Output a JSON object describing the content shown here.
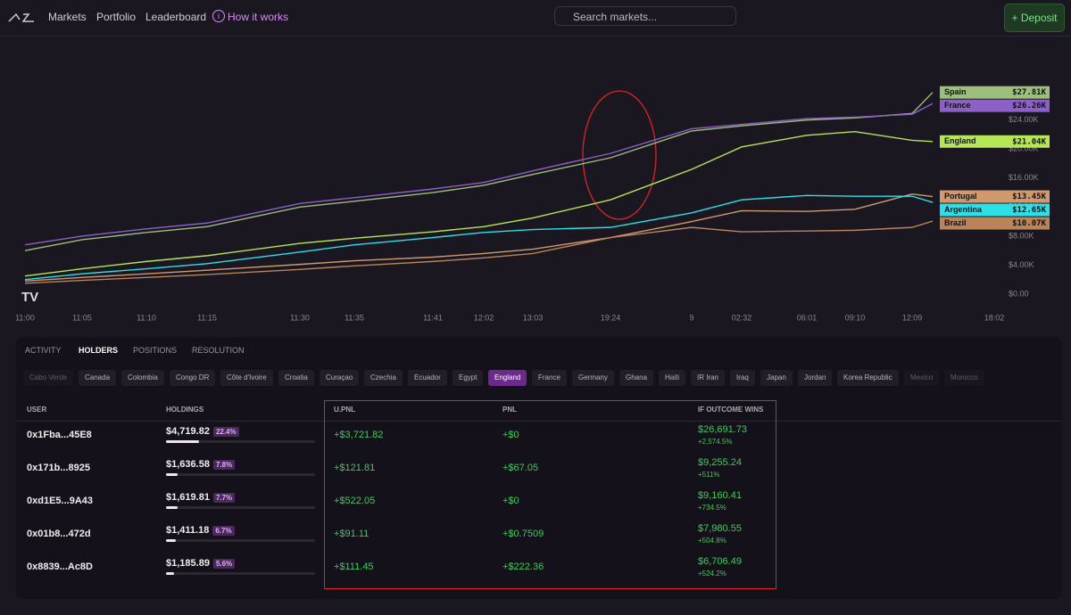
{
  "header": {
    "nav": [
      "Markets",
      "Portfolio",
      "Leaderboard",
      "How it works"
    ],
    "search_placeholder": "Search markets...",
    "deposit": "+ Deposit"
  },
  "chart_data": {
    "type": "line",
    "categories": [
      "11:00",
      "11:05",
      "11:10",
      "11:15",
      "11:30",
      "11:35",
      "11:41",
      "12:02",
      "13:03",
      "19:24",
      "9",
      "02:32",
      "06:01",
      "09:10",
      "12:09",
      "18:02"
    ],
    "ylim": [
      0,
      29000
    ],
    "yticks": [
      {
        "value": 0,
        "label": "$0.00"
      },
      {
        "value": 4000,
        "label": "$4.00K"
      },
      {
        "value": 8000,
        "label": "$8.00K"
      },
      {
        "value": 12000,
        "label": "$12.00K"
      },
      {
        "value": 16000,
        "label": "$16.00K"
      },
      {
        "value": 20000,
        "label": "$20.00K"
      },
      {
        "value": 24000,
        "label": "$24.00K"
      }
    ],
    "series": [
      {
        "name": "Spain",
        "color": "#9dbf7c",
        "values": [
          6000,
          7500,
          8500,
          9300,
          12000,
          12800,
          14000,
          15000,
          16500,
          18800,
          22500,
          23200,
          24000,
          24300,
          24900,
          27810
        ],
        "value_labels": [
          null,
          null,
          null,
          null,
          null,
          null,
          null,
          null,
          null,
          null,
          null,
          null,
          null,
          null,
          null,
          "$27.81K"
        ]
      },
      {
        "name": "France",
        "color": "#8e5fc7",
        "values": [
          6800,
          8000,
          9000,
          9800,
          12500,
          13300,
          14500,
          15400,
          17000,
          19400,
          22800,
          23400,
          24200,
          24400,
          24800,
          26260
        ],
        "value_labels": [
          null,
          null,
          null,
          null,
          null,
          null,
          null,
          null,
          null,
          null,
          null,
          null,
          null,
          null,
          null,
          "$26.26K"
        ]
      },
      {
        "name": "England",
        "color": "#b5e655",
        "values": [
          2500,
          3500,
          4500,
          5300,
          7000,
          7700,
          8600,
          9300,
          10500,
          13000,
          17200,
          20300,
          21900,
          22400,
          21200,
          21040
        ],
        "value_labels": [
          null,
          null,
          null,
          null,
          null,
          null,
          null,
          null,
          null,
          null,
          null,
          null,
          null,
          null,
          null,
          "$21.04K"
        ]
      },
      {
        "name": "Portugal",
        "color": "#d09a6e",
        "values": [
          1800,
          2300,
          2800,
          3300,
          4100,
          4600,
          5100,
          5600,
          6200,
          7800,
          10000,
          11500,
          11400,
          11700,
          13800,
          13450
        ],
        "value_labels": [
          null,
          null,
          null,
          null,
          null,
          null,
          null,
          null,
          null,
          null,
          null,
          null,
          null,
          null,
          null,
          "$13.45K"
        ]
      },
      {
        "name": "Argentina",
        "color": "#2de0e8",
        "values": [
          2000,
          2800,
          3500,
          4200,
          5800,
          6800,
          7800,
          8500,
          8900,
          9200,
          11200,
          13000,
          13600,
          13500,
          13500,
          12650
        ],
        "value_labels": [
          null,
          null,
          null,
          null,
          null,
          null,
          null,
          null,
          null,
          null,
          null,
          null,
          null,
          null,
          null,
          "$12.65K"
        ]
      },
      {
        "name": "Brazil",
        "color": "#b9845a",
        "values": [
          1500,
          1900,
          2300,
          2700,
          3400,
          3900,
          4500,
          5000,
          5600,
          7800,
          9200,
          8600,
          8700,
          8800,
          9200,
          10070
        ],
        "value_labels": [
          null,
          null,
          null,
          null,
          null,
          null,
          null,
          null,
          null,
          null,
          null,
          null,
          null,
          null,
          null,
          "$10.07K"
        ]
      }
    ]
  },
  "panel": {
    "tabs": [
      "ACTIVITY",
      "HOLDERS",
      "POSITIONS",
      "RESOLUTION"
    ],
    "active_tab": "HOLDERS",
    "chips": [
      "Cabo Verde",
      "Canada",
      "Colombia",
      "Congo DR",
      "Côte d'Ivoire",
      "Croatia",
      "Curaçao",
      "Czechia",
      "Ecuador",
      "Egypt",
      "England",
      "France",
      "Germany",
      "Ghana",
      "Haiti",
      "IR Iran",
      "Iraq",
      "Japan",
      "Jordan",
      "Korea Republic",
      "Mexico",
      "Morocco"
    ],
    "active_chip": "England",
    "table": {
      "headers": [
        "USER",
        "HOLDINGS",
        "U.PNL",
        "PNL",
        "IF OUTCOME WINS"
      ],
      "rows": [
        {
          "user": "0x1Fba...45E8",
          "holdings": "$4,719.82",
          "share": 22.4,
          "share_label": "22.4%",
          "upnl": "+$3,721.82",
          "pnl": "+$0",
          "wins": "$26,691.73",
          "wins_pct": "+2,574.5%"
        },
        {
          "user": "0x171b...8925",
          "holdings": "$1,636.58",
          "share": 7.8,
          "share_label": "7.8%",
          "upnl": "+$121.81",
          "pnl": "+$67.05",
          "wins": "$9,255.24",
          "wins_pct": "+511%"
        },
        {
          "user": "0xd1E5...9A43",
          "holdings": "$1,619.81",
          "share": 7.7,
          "share_label": "7.7%",
          "upnl": "+$522.05",
          "pnl": "+$0",
          "wins": "$9,160.41",
          "wins_pct": "+734.5%"
        },
        {
          "user": "0x01b8...472d",
          "holdings": "$1,411.18",
          "share": 6.7,
          "share_label": "6.7%",
          "upnl": "+$91.11",
          "pnl": "+$0.7509",
          "wins": "$7,980.55",
          "wins_pct": "+504.8%"
        },
        {
          "user": "0x8839...Ac8D",
          "holdings": "$1,185.89",
          "share": 5.6,
          "share_label": "5.6%",
          "upnl": "+$111.45",
          "pnl": "+$222.36",
          "wins": "$6,706.49",
          "wins_pct": "+524.2%"
        }
      ]
    }
  }
}
